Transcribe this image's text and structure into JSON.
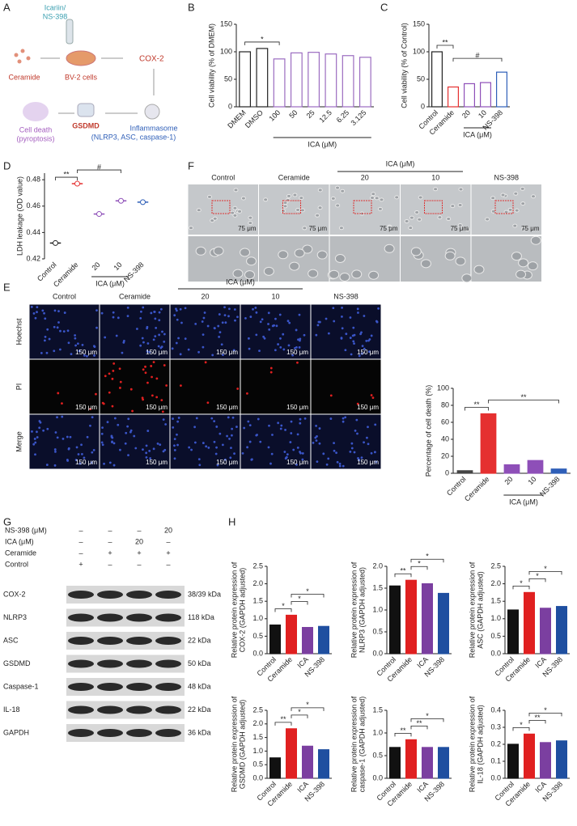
{
  "panel_labels": [
    "A",
    "B",
    "C",
    "D",
    "E",
    "F",
    "G",
    "H"
  ],
  "diagram": {
    "treatment": [
      "Icariin/",
      "NS-398"
    ],
    "ceramide": "Ceramide",
    "cells": "BV-2 cells",
    "cox2": "COX-2",
    "inflammasome": [
      "Inflammasome",
      "(NLRP3, ASC, caspase-1)"
    ],
    "gsdmd": "GSDMD",
    "death": [
      "Cell death",
      "(pyroptosis)"
    ]
  },
  "microscopy_f": {
    "columns": [
      "Control",
      "Ceramide",
      "20",
      "10",
      "NS-398"
    ],
    "group_label": "ICA (μM)",
    "scale_bar": "75 μm"
  },
  "microscopy_e": {
    "columns": [
      "Control",
      "Ceramide",
      "20",
      "10",
      "NS-398"
    ],
    "group_label": "ICA (μM)",
    "rows": [
      "Hoechst",
      "PI",
      "Merge"
    ],
    "scale_bar": "150 μm"
  },
  "western_blot": {
    "conditions": [
      {
        "label": "NS-398 (μM)",
        "marks": [
          "–",
          "–",
          "–",
          "20"
        ]
      },
      {
        "label": "ICA (μM)",
        "marks": [
          "–",
          "–",
          "20",
          "–"
        ]
      },
      {
        "label": "Ceramide",
        "marks": [
          "–",
          "+",
          "+",
          "+"
        ]
      },
      {
        "label": "Control",
        "marks": [
          "+",
          "–",
          "–",
          "–"
        ]
      }
    ],
    "proteins": [
      {
        "name": "COX-2",
        "size": "38/39 kDa"
      },
      {
        "name": "NLRP3",
        "size": "118 kDa"
      },
      {
        "name": "ASC",
        "size": "22 kDa"
      },
      {
        "name": "GSDMD",
        "size": "50 kDa"
      },
      {
        "name": "Caspase-1",
        "size": "48 kDa"
      },
      {
        "name": "IL-18",
        "size": "22 kDa"
      },
      {
        "name": "GAPDH",
        "size": "36 kDa"
      }
    ]
  },
  "chart_data": [
    {
      "type": "bar",
      "style": "outline",
      "ylabel": [
        "Cell viability (% of DMEM)"
      ],
      "categories": [
        "DMEM",
        "DMSO",
        "100",
        "50",
        "25",
        "12.5",
        "6.25",
        "3.125"
      ],
      "values": [
        100,
        106,
        87,
        98,
        99,
        96,
        93,
        90
      ],
      "colors": [
        "#222222",
        "#222222",
        "#9b6cc0",
        "#9b6cc0",
        "#9b6cc0",
        "#9b6cc0",
        "#9b6cc0",
        "#9b6cc0"
      ],
      "ylim": [
        0,
        150
      ],
      "yticks": [
        0,
        50,
        100,
        150
      ],
      "group": {
        "label": "ICA (μM)",
        "span": [
          "100",
          "3.125"
        ]
      },
      "annotations": [
        {
          "text": "*",
          "between": [
            "DMEM",
            "100"
          ]
        }
      ]
    },
    {
      "type": "bar",
      "style": "outline",
      "ylabel": [
        "Cell viability (% of Control)"
      ],
      "categories": [
        "Control",
        "Ceramide",
        "20",
        "10",
        "NS-398"
      ],
      "values": [
        100,
        36,
        42,
        44,
        63
      ],
      "colors": [
        "#222222",
        "#e53030",
        "#8e4fb8",
        "#8e4fb8",
        "#2f5fb8"
      ],
      "ylim": [
        0,
        150
      ],
      "yticks": [
        0,
        50,
        100,
        150
      ],
      "group": {
        "label": "ICA (μM)",
        "span": [
          "20",
          "10"
        ]
      },
      "annotations": [
        {
          "text": "**",
          "between": [
            "Control",
            "Ceramide"
          ]
        },
        {
          "text": "#",
          "between": [
            "Ceramide",
            "NS-398"
          ]
        }
      ]
    },
    {
      "type": "dot",
      "ylabel": [
        "LDH leakage (OD value)"
      ],
      "categories": [
        "Control",
        "Ceramide",
        "20",
        "10",
        "NS-398"
      ],
      "values": [
        0.432,
        0.477,
        0.454,
        0.464,
        0.463
      ],
      "colors": [
        "#222222",
        "#e53030",
        "#8e4fb8",
        "#8e4fb8",
        "#2f5fb8"
      ],
      "ylim": [
        0.42,
        0.485
      ],
      "yticks": [
        0.42,
        0.44,
        0.46,
        0.48
      ],
      "group": {
        "label": "ICA (μM)",
        "span": [
          "20",
          "10"
        ]
      },
      "annotations": [
        {
          "text": "**",
          "between": [
            "Control",
            "Ceramide"
          ]
        },
        {
          "text": "#",
          "between": [
            "Ceramide",
            "10"
          ]
        }
      ]
    },
    {
      "type": "bar",
      "style": "filled",
      "ylabel": [
        "Percentage of cell death (%)"
      ],
      "categories": [
        "Control",
        "Ceramide",
        "20",
        "10",
        "NS-398"
      ],
      "values": [
        3,
        70,
        10,
        15,
        5
      ],
      "colors": [
        "#444444",
        "#e53030",
        "#8e4fb8",
        "#8e4fb8",
        "#2f5fb8"
      ],
      "ylim": [
        0,
        100
      ],
      "yticks": [
        0,
        20,
        40,
        60,
        80,
        100
      ],
      "group": {
        "label": "ICA (μM)",
        "span": [
          "20",
          "10"
        ]
      },
      "annotations": [
        {
          "text": "**",
          "between": [
            "Control",
            "Ceramide"
          ]
        },
        {
          "text": "**",
          "between": [
            "Ceramide",
            "NS-398"
          ]
        }
      ]
    },
    {
      "type": "bar",
      "style": "filled",
      "ylabel": [
        "Relative protein expression of",
        "COX-2 (GAPDH adjusted)"
      ],
      "categories": [
        "Control",
        "Ceramide",
        "ICA",
        "NS-398"
      ],
      "values": [
        0.82,
        1.1,
        0.75,
        0.78
      ],
      "colors": [
        "#111111",
        "#e02020",
        "#7b3fa0",
        "#1f4fa0"
      ],
      "ylim": [
        0,
        2.5
      ],
      "yticks": [
        {
          "value": 0,
          "label": "0.0"
        },
        0.5,
        {
          "value": 1,
          "label": "1.0"
        },
        1.5,
        {
          "value": 2,
          "label": "2.0"
        },
        2.5
      ],
      "annotations": [
        {
          "text": "*",
          "between": [
            "Control",
            "Ceramide"
          ]
        },
        {
          "text": "*",
          "between": [
            "Ceramide",
            "ICA"
          ]
        },
        {
          "text": "*",
          "between": [
            "Ceramide",
            "NS-398"
          ]
        }
      ]
    },
    {
      "type": "bar",
      "style": "filled",
      "ylabel": [
        "Relative protein expression of",
        "NLRP3 (GAPDH adjusted)"
      ],
      "categories": [
        "Control",
        "Ceramide",
        "ICA",
        "NS-398"
      ],
      "values": [
        1.55,
        1.68,
        1.6,
        1.38
      ],
      "colors": [
        "#111111",
        "#e02020",
        "#7b3fa0",
        "#1f4fa0"
      ],
      "ylim": [
        0,
        2
      ],
      "yticks": [
        {
          "value": 0,
          "label": "0.0"
        },
        0.5,
        {
          "value": 1,
          "label": "1.0"
        },
        1.5,
        {
          "value": 2,
          "label": "2.0"
        }
      ],
      "annotations": [
        {
          "text": "**",
          "between": [
            "Control",
            "Ceramide"
          ]
        },
        {
          "text": "*",
          "between": [
            "Ceramide",
            "ICA"
          ]
        },
        {
          "text": "*",
          "between": [
            "Ceramide",
            "NS-398"
          ]
        }
      ]
    },
    {
      "type": "bar",
      "style": "filled",
      "ylabel": [
        "Relative protein expression of",
        "ASC (GAPDH adjusted)"
      ],
      "categories": [
        "Control",
        "Ceramide",
        "ICA",
        "NS-398"
      ],
      "values": [
        1.25,
        1.75,
        1.3,
        1.35
      ],
      "colors": [
        "#111111",
        "#e02020",
        "#7b3fa0",
        "#1f4fa0"
      ],
      "ylim": [
        0,
        2.5
      ],
      "yticks": [
        {
          "value": 0,
          "label": "0.0"
        },
        0.5,
        {
          "value": 1,
          "label": "1.0"
        },
        1.5,
        {
          "value": 2,
          "label": "2.0"
        },
        2.5
      ],
      "annotations": [
        {
          "text": "*",
          "between": [
            "Control",
            "Ceramide"
          ]
        },
        {
          "text": "*",
          "between": [
            "Ceramide",
            "ICA"
          ]
        },
        {
          "text": "*",
          "between": [
            "Ceramide",
            "NS-398"
          ]
        }
      ]
    },
    {
      "type": "bar",
      "style": "filled",
      "ylabel": [
        "Relative protein expression of",
        "GSDMD (GAPDH adjusted)"
      ],
      "categories": [
        "Control",
        "Ceramide",
        "ICA",
        "NS-398"
      ],
      "values": [
        0.75,
        1.82,
        1.18,
        1.05
      ],
      "colors": [
        "#111111",
        "#e02020",
        "#7b3fa0",
        "#1f4fa0"
      ],
      "ylim": [
        0,
        2.5
      ],
      "yticks": [
        {
          "value": 0,
          "label": "0.0"
        },
        0.5,
        {
          "value": 1,
          "label": "1.0"
        },
        1.5,
        {
          "value": 2,
          "label": "2.0"
        },
        2.5
      ],
      "annotations": [
        {
          "text": "**",
          "between": [
            "Control",
            "Ceramide"
          ]
        },
        {
          "text": "*",
          "between": [
            "Ceramide",
            "ICA"
          ]
        },
        {
          "text": "*",
          "between": [
            "Ceramide",
            "NS-398"
          ]
        }
      ]
    },
    {
      "type": "bar",
      "style": "filled",
      "ylabel": [
        "Relative protein expression of",
        "caspase-1 (GAPDH adjusted)"
      ],
      "categories": [
        "Control",
        "Ceramide",
        "ICA",
        "NS-398"
      ],
      "values": [
        0.68,
        0.85,
        0.68,
        0.68
      ],
      "colors": [
        "#111111",
        "#e02020",
        "#7b3fa0",
        "#1f4fa0"
      ],
      "ylim": [
        0,
        1.5
      ],
      "yticks": [
        {
          "value": 0,
          "label": "0.0"
        },
        0.5,
        {
          "value": 1,
          "label": "1.0"
        },
        1.5
      ],
      "annotations": [
        {
          "text": "**",
          "between": [
            "Control",
            "Ceramide"
          ]
        },
        {
          "text": "**",
          "between": [
            "Ceramide",
            "ICA"
          ]
        },
        {
          "text": "*",
          "between": [
            "Ceramide",
            "NS-398"
          ]
        }
      ]
    },
    {
      "type": "bar",
      "style": "filled",
      "ylabel": [
        "Relative protein expression of",
        "IL-18 (GAPDH adjusted)"
      ],
      "categories": [
        "Control",
        "Ceramide",
        "ICA",
        "NS-398"
      ],
      "values": [
        0.2,
        0.26,
        0.21,
        0.22
      ],
      "colors": [
        "#111111",
        "#e02020",
        "#7b3fa0",
        "#1f4fa0"
      ],
      "ylim": [
        0,
        0.4
      ],
      "yticks": [
        {
          "value": 0,
          "label": "0.0"
        },
        0.1,
        0.2,
        0.3,
        0.4
      ],
      "annotations": [
        {
          "text": "*",
          "between": [
            "Control",
            "Ceramide"
          ]
        },
        {
          "text": "**",
          "between": [
            "Ceramide",
            "ICA"
          ]
        },
        {
          "text": "*",
          "between": [
            "Ceramide",
            "NS-398"
          ]
        }
      ]
    }
  ]
}
